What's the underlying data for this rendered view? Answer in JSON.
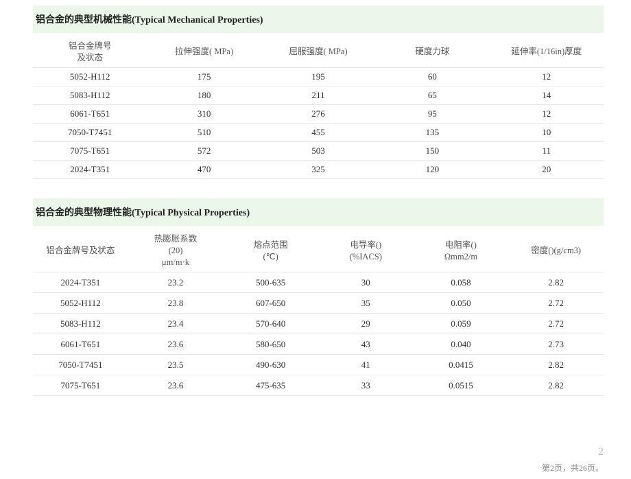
{
  "table1": {
    "title": "铝合金的典型机械性能(Typical Mechanical Properties)",
    "columns": [
      "铝合金牌号\n及状态",
      "拉伸强度( MPa)",
      "屈服强度( MPa)",
      "硬度力球",
      "延伸率(1/16in)厚度"
    ],
    "rows": [
      [
        "5052-H112",
        "175",
        "195",
        "60",
        "12"
      ],
      [
        "5083-H112",
        "180",
        "211",
        "65",
        "14"
      ],
      [
        "6061-T651",
        "310",
        "276",
        "95",
        "12"
      ],
      [
        "7050-T7451",
        "510",
        "455",
        "135",
        "10"
      ],
      [
        "7075-T651",
        "572",
        "503",
        "150",
        "11"
      ],
      [
        "2024-T351",
        "470",
        "325",
        "120",
        "20"
      ]
    ]
  },
  "table2": {
    "title": "铝合金的典型物理性能(Typical Physical Properties)",
    "columns": [
      "铝合金牌号及状态",
      "热膨胀系数\n(20)\nμm/m·k",
      "熔点范围\n(℃)",
      "电导率()\n(%IACS)",
      "电阻率()\nΩmm2/m",
      "密度()(g/cm3)"
    ],
    "rows": [
      [
        "2024-T351",
        "23.2",
        "500-635",
        "30",
        "0.058",
        "2.82"
      ],
      [
        "5052-H112",
        "23.8",
        "607-650",
        "35",
        "0.050",
        "2.72"
      ],
      [
        "5083-H112",
        "23.4",
        "570-640",
        "29",
        "0.059",
        "2.72"
      ],
      [
        "6061-T651",
        "23.6",
        "580-650",
        "43",
        "0.040",
        "2.73"
      ],
      [
        "7050-T7451",
        "23.5",
        "490-630",
        "41",
        "0.0415",
        "2.82"
      ],
      [
        "7075-T651",
        "23.6",
        "475-635",
        "33",
        "0.0515",
        "2.82"
      ]
    ]
  },
  "page_number": "2",
  "footer": "第2页，共26页。"
}
